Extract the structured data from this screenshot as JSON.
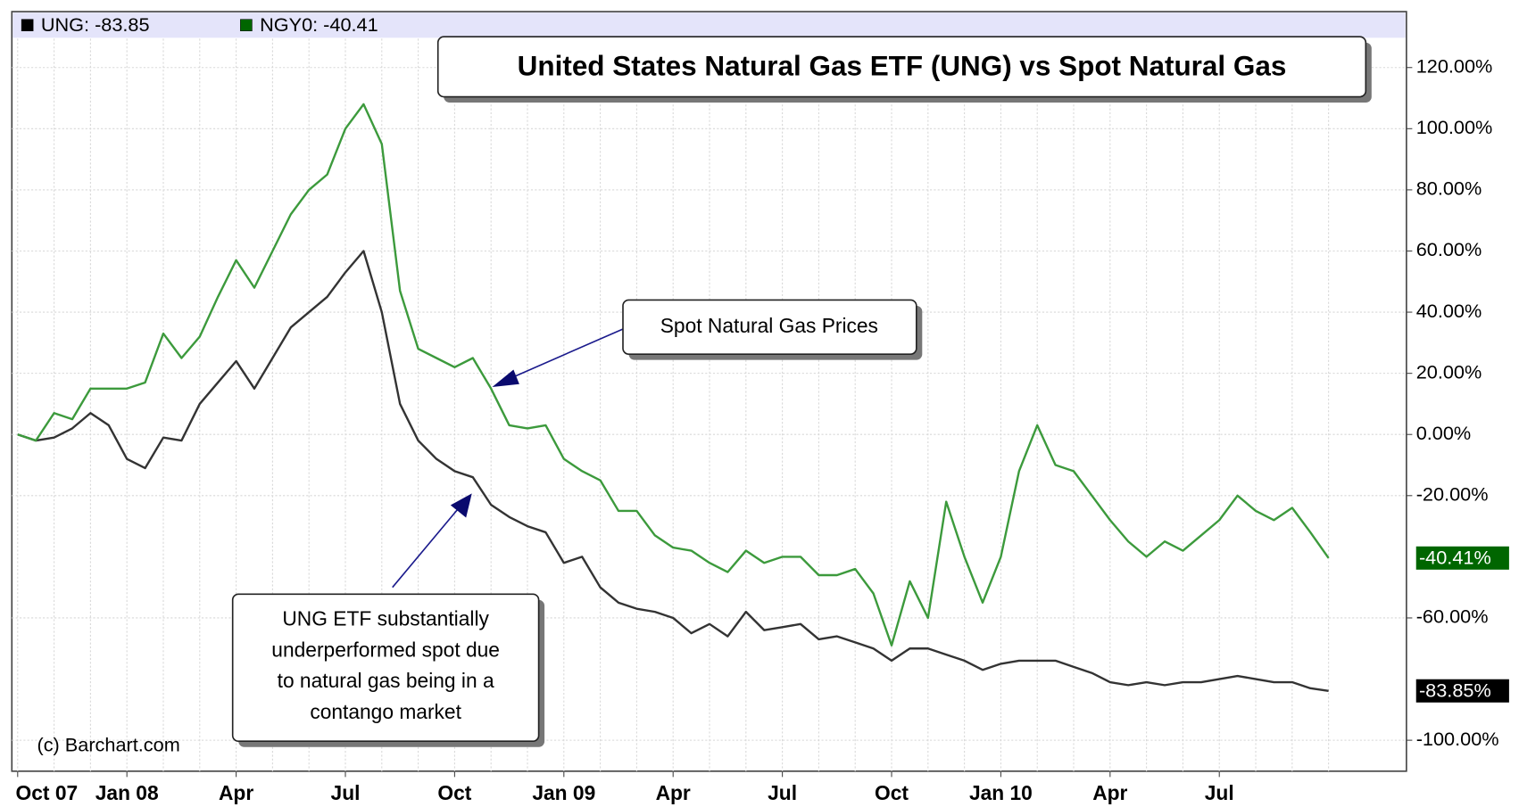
{
  "chart_data": {
    "type": "line",
    "title": "United States Natural Gas ETF (UNG) vs Spot Natural Gas",
    "categories": [
      "Oct 07",
      null,
      null,
      null,
      null,
      null,
      "Jan 08",
      null,
      null,
      null,
      null,
      null,
      "Apr",
      null,
      null,
      null,
      null,
      null,
      "Jul",
      null,
      null,
      null,
      null,
      null,
      "Oct",
      null,
      null,
      null,
      null,
      null,
      "Jan 09",
      null,
      null,
      null,
      null,
      null,
      "Apr",
      null,
      null,
      null,
      null,
      null,
      "Jul",
      null,
      null,
      null,
      null,
      null,
      "Oct",
      null,
      null,
      null,
      null,
      null,
      "Jan 10",
      null,
      null,
      null,
      null,
      null,
      "Apr",
      null,
      null,
      null,
      null,
      null,
      "Jul",
      null,
      null,
      null,
      null,
      null,
      null
    ],
    "series": [
      {
        "name": "UNG: -83.85",
        "color": "#333333",
        "last_label": "-83.85%",
        "last_label_color": "#000000",
        "values": [
          0,
          -2,
          -1,
          2,
          7,
          3,
          -8,
          -11,
          -1,
          -2,
          10,
          17,
          24,
          15,
          25,
          35,
          40,
          45,
          53,
          60,
          40,
          10,
          -2,
          -8,
          -12,
          -14,
          -23,
          -27,
          -30,
          -32,
          -42,
          -40,
          -50,
          -55,
          -57,
          -58,
          -60,
          -65,
          -62,
          -66,
          -58,
          -64,
          -63,
          -62,
          -67,
          -66,
          -68,
          -70,
          -74,
          -70,
          -70,
          -72,
          -74,
          -77,
          -75,
          -74,
          -74,
          -74,
          -76,
          -78,
          -81,
          -82,
          -81,
          -82,
          -81,
          -81,
          -80,
          -79,
          -80,
          -81,
          -81,
          -83,
          -83.85
        ]
      },
      {
        "name": "NGY0: -40.41",
        "color": "#3c9a3c",
        "last_label": "-40.41%",
        "last_label_color": "#006600",
        "values": [
          0,
          -2,
          7,
          5,
          15,
          15,
          15,
          17,
          33,
          25,
          32,
          45,
          57,
          48,
          60,
          72,
          80,
          85,
          100,
          108,
          95,
          47,
          28,
          25,
          22,
          25,
          15,
          3,
          2,
          3,
          -8,
          -12,
          -15,
          -25,
          -25,
          -33,
          -37,
          -38,
          -42,
          -45,
          -38,
          -42,
          -40,
          -40,
          -46,
          -46,
          -44,
          -52,
          -69,
          -48,
          -60,
          -22,
          -40,
          -55,
          -40,
          -12,
          3,
          -10,
          -12,
          -20,
          -28,
          -35,
          -40,
          -35,
          -38,
          -33,
          -28,
          -20,
          -25,
          -28,
          -24,
          -32,
          -40.41
        ]
      }
    ],
    "legend_colors": [
      "#000000",
      "#006600"
    ],
    "ylim": [
      -110,
      129
    ],
    "yticks": [
      {
        "value": -100,
        "label": "-100.00%"
      },
      {
        "value": -60,
        "label": "-60.00%"
      },
      {
        "value": -20,
        "label": "-20.00%"
      },
      {
        "value": 0,
        "label": "0.00%"
      },
      {
        "value": 20,
        "label": "20.00%"
      },
      {
        "value": 40,
        "label": "40.00%"
      },
      {
        "value": 60,
        "label": "60.00%"
      },
      {
        "value": 80,
        "label": "80.00%"
      },
      {
        "value": 100,
        "label": "100.00%"
      },
      {
        "value": 120,
        "label": "120.00%"
      }
    ],
    "y_axis_side": "right",
    "grid": true,
    "annotations": [
      {
        "lines": [
          "Spot Natural Gas Prices"
        ]
      },
      {
        "lines": [
          "UNG ETF substantially",
          "underperformed spot due",
          "to natural gas being in a",
          "contango market"
        ]
      }
    ],
    "credit": "(c) Barchart.com"
  }
}
